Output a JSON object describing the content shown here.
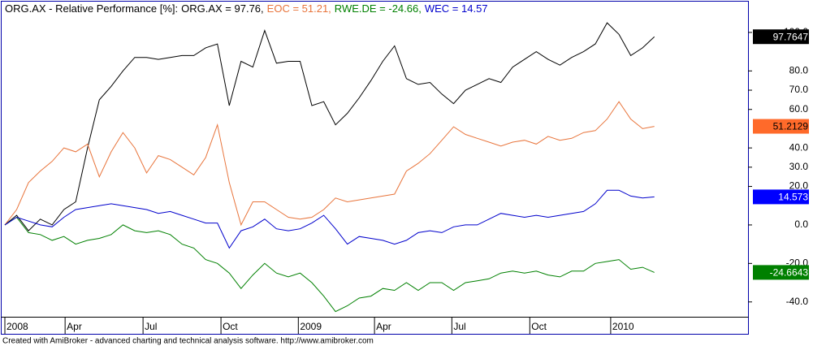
{
  "chart_data": {
    "type": "line",
    "title": "ORG.AX - Relative Performance [%]:",
    "footer": "Created with AmiBroker - advanced charting and technical analysis software. http://www.amibroker.com",
    "x": [
      0,
      2,
      4,
      6,
      8,
      10,
      12,
      14,
      16,
      18,
      20,
      22,
      24,
      26,
      28,
      30,
      32,
      34,
      36,
      38,
      40,
      42,
      44,
      46,
      48,
      50,
      52,
      54,
      56,
      58,
      60,
      62,
      64,
      66,
      68,
      70,
      72,
      74,
      76,
      78,
      80,
      82,
      84,
      86,
      88,
      90,
      92,
      94,
      96,
      98,
      100,
      102,
      104,
      106,
      108,
      110
    ],
    "xlim": [
      -0.55,
      125.86
    ],
    "xticks": [
      {
        "value": 0,
        "label": "2008"
      },
      {
        "value": 10.2,
        "label": "Apr"
      },
      {
        "value": 23.4,
        "label": "Jul"
      },
      {
        "value": 36.6,
        "label": "Oct"
      },
      {
        "value": 49.7,
        "label": "2009"
      },
      {
        "value": 62.6,
        "label": "Apr"
      },
      {
        "value": 75.7,
        "label": "Jul"
      },
      {
        "value": 88.9,
        "label": "Oct"
      },
      {
        "value": 102.6,
        "label": "2010"
      }
    ],
    "ylim": [
      -47.7,
      116.0
    ],
    "yticks": [
      {
        "value": 100,
        "label": "100.0"
      },
      {
        "value": 80,
        "label": "80.0"
      },
      {
        "value": 70,
        "label": "70.0"
      },
      {
        "value": 60,
        "label": "60.0"
      },
      {
        "value": 40,
        "label": "40.0"
      },
      {
        "value": 30,
        "label": "30.0"
      },
      {
        "value": 20,
        "label": "20.0"
      },
      {
        "value": 0,
        "label": "0.0"
      },
      {
        "value": -20,
        "label": "-20.0"
      },
      {
        "value": -40,
        "label": "-40.0"
      }
    ],
    "series": [
      {
        "name": "ORG.AX = 97.76,",
        "color": "#000000",
        "label_bg": "#000000",
        "label_fg": "#ffffff",
        "values": [
          0,
          5,
          -3,
          3,
          0,
          8,
          12,
          40,
          65,
          72,
          80,
          87,
          87,
          86,
          87,
          88,
          88,
          92,
          94,
          62,
          85,
          82,
          101,
          84,
          85,
          85,
          62,
          64,
          52,
          58,
          66,
          75,
          85,
          93,
          76,
          73,
          74,
          68,
          63,
          70,
          73,
          76,
          74,
          82,
          86,
          90,
          86,
          83,
          87,
          90,
          94,
          105,
          99,
          88,
          92,
          97.7647
        ]
      },
      {
        "name": "EOC = 51.21,",
        "color": "#e8743b",
        "label_bg": "#ff6a2a",
        "label_fg": "#000000",
        "values": [
          0,
          8,
          22,
          28,
          33,
          40,
          38,
          42,
          25,
          38,
          48,
          40,
          27,
          36,
          34,
          30,
          26,
          35,
          52,
          22,
          0,
          12,
          12,
          8,
          4,
          3,
          4,
          8,
          14,
          12,
          13,
          14,
          15,
          16,
          28,
          32,
          37,
          44,
          51,
          47,
          45,
          43,
          41,
          43,
          44,
          42,
          46,
          44,
          45,
          48,
          49,
          55,
          64,
          55,
          50,
          51.2129
        ]
      },
      {
        "name": "RWE.DE = -24.66,",
        "color": "#008000",
        "label_bg": "#008000",
        "label_fg": "#ffffff",
        "values": [
          0,
          4,
          -4,
          -5,
          -8,
          -6,
          -10,
          -8,
          -7,
          -5,
          0,
          -3,
          -4,
          -3,
          -5,
          -10,
          -12,
          -18,
          -20,
          -25,
          -33,
          -26,
          -20,
          -25,
          -27,
          -25,
          -30,
          -37,
          -45,
          -42,
          -38,
          -37,
          -33,
          -34,
          -30,
          -34,
          -30,
          -30,
          -34,
          -30,
          -29,
          -28,
          -25,
          -24,
          -25,
          -24,
          -26,
          -27,
          -24,
          -24,
          -20,
          -19,
          -18,
          -23,
          -22,
          -24.6643
        ]
      },
      {
        "name": "WEC = 14.57",
        "color": "#0000cc",
        "label_bg": "#0000ff",
        "label_fg": "#ffffff",
        "values": [
          0,
          4,
          2,
          0,
          -1,
          4,
          8,
          9,
          10,
          11,
          10,
          9,
          8,
          6,
          7,
          5,
          3,
          1,
          1,
          -12,
          -3,
          -1,
          3,
          -2,
          -3,
          -2,
          1,
          5,
          -2,
          -10,
          -6,
          -7,
          -8,
          -10,
          -8,
          -4,
          -3,
          -4,
          -1,
          0,
          0,
          3,
          6,
          5,
          4,
          5,
          4,
          5,
          6,
          7,
          11,
          18,
          18,
          15,
          14,
          14.573
        ]
      }
    ]
  }
}
